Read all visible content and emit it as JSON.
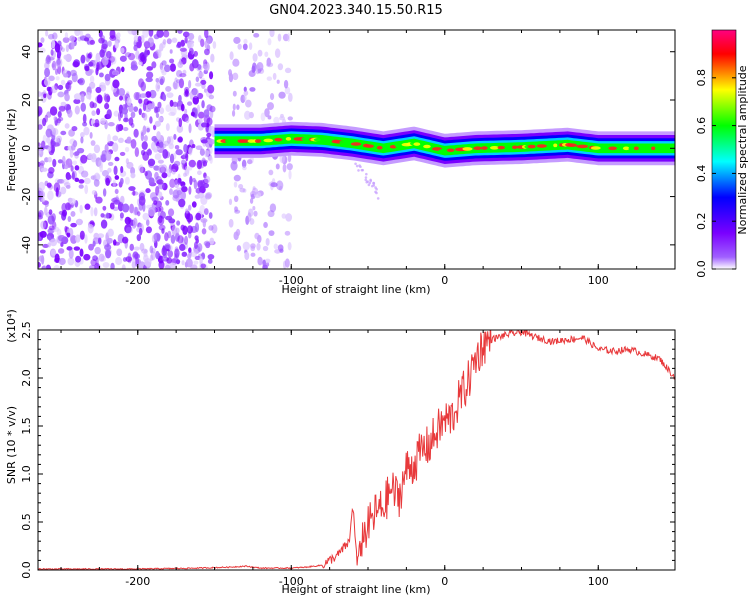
{
  "title": "GN04.2023.340.15.50.R15",
  "chart_data": [
    {
      "type": "heatmap",
      "title": "",
      "xlabel": "Height of straight line (km)",
      "ylabel": "Frequency (Hz)",
      "xlim": [
        -265,
        150
      ],
      "ylim": [
        -50,
        49
      ],
      "xticks": [
        -200,
        -100,
        0,
        100
      ],
      "xtick_labels": [
        "-200",
        "-100",
        "0",
        "100"
      ],
      "yticks": [
        -40,
        -20,
        0,
        20,
        40
      ],
      "ytick_labels": [
        "-40",
        "-20",
        "0",
        "20",
        "40"
      ],
      "colorbar": {
        "label": "Normalized spectral amplitude",
        "range": [
          0,
          1
        ],
        "ticks": [
          0.0,
          0.2,
          0.4,
          0.6,
          0.8
        ],
        "tick_labels": [
          "0.0",
          "0.2",
          "0.4",
          "0.6",
          "0.8"
        ],
        "colors": [
          "#ffffff",
          "#7a00ff",
          "#0000ff",
          "#00ffff",
          "#00ff00",
          "#ffff00",
          "#ff0000",
          "#ff0080"
        ]
      },
      "regions": [
        {
          "name": "noise",
          "x_range": [
            -265,
            -150
          ],
          "freq_range": [
            -50,
            49
          ],
          "amplitude": 0.08
        },
        {
          "name": "noise",
          "x_range": [
            -140,
            -100
          ],
          "freq_range": [
            -50,
            49
          ],
          "amplitude": 0.05
        }
      ],
      "ridge": [
        {
          "x": -150,
          "f": 3.0,
          "amp": 0.6
        },
        {
          "x": -120,
          "f": 3.0,
          "amp": 0.55
        },
        {
          "x": -100,
          "f": 4.0,
          "amp": 0.5
        },
        {
          "x": -80,
          "f": 3.5,
          "amp": 0.6
        },
        {
          "x": -60,
          "f": 2.0,
          "amp": 0.8
        },
        {
          "x": -40,
          "f": 0.0,
          "amp": 0.85
        },
        {
          "x": -20,
          "f": 2.0,
          "amp": 0.85
        },
        {
          "x": 0,
          "f": -1.0,
          "amp": 0.85
        },
        {
          "x": 20,
          "f": 0.0,
          "amp": 0.9
        },
        {
          "x": 50,
          "f": 0.5,
          "amp": 0.9
        },
        {
          "x": 80,
          "f": 1.5,
          "amp": 0.9
        },
        {
          "x": 100,
          "f": 0.0,
          "amp": 0.9
        },
        {
          "x": 150,
          "f": 0.0,
          "amp": 0.85
        }
      ]
    },
    {
      "type": "line",
      "title": "",
      "xlabel": "Height of straight line (km)",
      "ylabel": "SNR (10 * v/v)",
      "y_multiplier": "(x10⁴)",
      "xlim": [
        -265,
        150
      ],
      "ylim": [
        0,
        2.5
      ],
      "xticks": [
        -200,
        -100,
        0,
        100
      ],
      "xtick_labels": [
        "-200",
        "-100",
        "0",
        "100"
      ],
      "yticks": [
        0.0,
        0.5,
        1.0,
        1.5,
        2.0,
        2.5
      ],
      "ytick_labels": [
        "0.0",
        "0.5",
        "1.0",
        "1.5",
        "2.0",
        "2.5"
      ],
      "series": [
        {
          "color": "#e8393b",
          "x": [
            -265,
            -240,
            -200,
            -160,
            -140,
            -130,
            -120,
            -100,
            -90,
            -80,
            -70,
            -62,
            -60,
            -57,
            -55,
            -50,
            -45,
            -40,
            -35,
            -30,
            -25,
            -20,
            -15,
            -10,
            -5,
            0,
            5,
            10,
            15,
            20,
            25,
            30,
            40,
            50,
            60,
            70,
            80,
            90,
            100,
            110,
            120,
            130,
            140,
            150
          ],
          "y": [
            0.01,
            0.01,
            0.01,
            0.02,
            0.03,
            0.04,
            0.02,
            0.02,
            0.03,
            0.05,
            0.15,
            0.3,
            0.7,
            0.05,
            0.3,
            0.45,
            0.6,
            0.65,
            0.85,
            0.75,
            1.05,
            1.1,
            1.25,
            1.3,
            1.45,
            1.55,
            1.6,
            1.8,
            1.95,
            2.2,
            2.35,
            2.4,
            2.45,
            2.48,
            2.42,
            2.38,
            2.4,
            2.42,
            2.3,
            2.28,
            2.3,
            2.25,
            2.2,
            2.0
          ]
        }
      ]
    }
  ]
}
